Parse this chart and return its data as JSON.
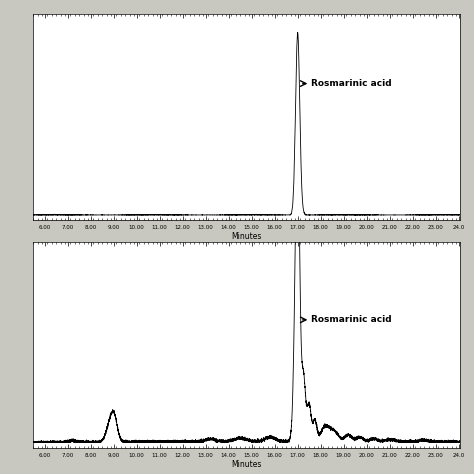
{
  "xlim": [
    5.5,
    24.05
  ],
  "xticks": [
    6.0,
    7.0,
    8.0,
    9.0,
    10.0,
    11.0,
    12.0,
    13.0,
    14.0,
    15.0,
    16.0,
    17.0,
    18.0,
    19.0,
    20.0,
    21.0,
    22.0,
    23.0,
    24.0
  ],
  "xtick_labels": [
    "6.00",
    "7.00",
    "8.00",
    "9.00",
    "10.00",
    "11.00",
    "12.00",
    "13.00",
    "14.00",
    "15.00",
    "16.00",
    "17.00",
    "18.00",
    "19.00",
    "20.00",
    "21.00",
    "22.00",
    "23.00",
    "24.0"
  ],
  "xlabel": "Minutes",
  "annotation_text": "→ Rosmarinic acid",
  "fig_bg": "#c8c8c0",
  "panel_bg": "#ffffff",
  "line_color": "#000000",
  "panel1_ylim": [
    -0.03,
    1.1
  ],
  "panel2_ylim": [
    -0.015,
    0.55
  ]
}
